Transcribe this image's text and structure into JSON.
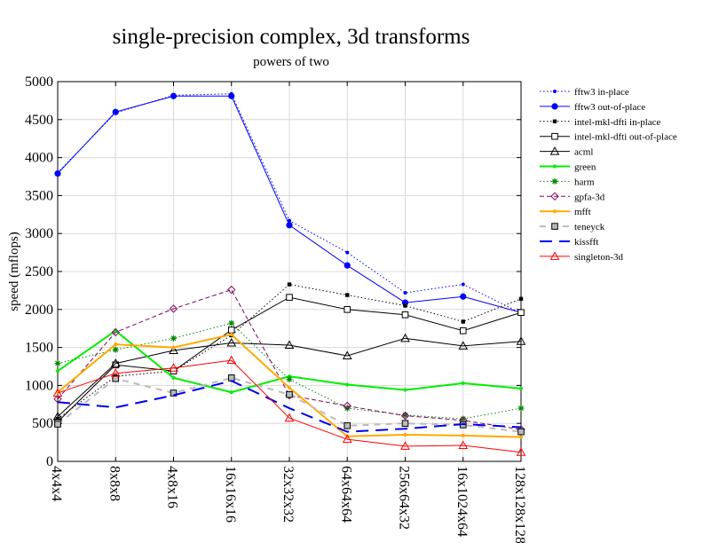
{
  "chart_data": {
    "type": "line",
    "title": "single-precision complex, 3d transforms",
    "subtitle": "powers of two",
    "xlabel": "",
    "ylabel": "speed (mflops)",
    "ylim": [
      0,
      5000
    ],
    "yticks": [
      0,
      500,
      1000,
      1500,
      2000,
      2500,
      3000,
      3500,
      4000,
      4500,
      5000
    ],
    "grid": true,
    "legend_position": "right",
    "categories": [
      "4x4x4",
      "8x8x8",
      "4x8x16",
      "16x16x16",
      "32x32x32",
      "64x64x64",
      "256x64x32",
      "16x1024x64",
      "128x128x128"
    ],
    "series": [
      {
        "name": "fftw3 in-place",
        "color": "#0000ff",
        "dash": "dot",
        "marker": "dot-small",
        "values": [
          3800,
          4590,
          4820,
          4840,
          3170,
          2750,
          2220,
          2330,
          1950
        ]
      },
      {
        "name": "fftw3 out-of-place",
        "color": "#0000ff",
        "dash": "solid",
        "marker": "dot-large",
        "values": [
          3790,
          4600,
          4810,
          4810,
          3110,
          2580,
          2090,
          2170,
          1960
        ]
      },
      {
        "name": "intel-mkl-dfti in-place",
        "color": "#000000",
        "dash": "dot",
        "marker": "square-filled",
        "values": [
          560,
          1120,
          1190,
          1660,
          2330,
          2190,
          2050,
          1840,
          2140
        ]
      },
      {
        "name": "intel-mkl-dfti out-of-place",
        "color": "#000000",
        "dash": "solid",
        "marker": "square-open",
        "values": [
          520,
          1270,
          1190,
          1730,
          2160,
          2000,
          1930,
          1720,
          1960
        ]
      },
      {
        "name": "acml",
        "color": "#000000",
        "dash": "solid",
        "marker": "triangle-open",
        "values": [
          590,
          1290,
          1460,
          1560,
          1530,
          1390,
          1620,
          1520,
          1580
        ]
      },
      {
        "name": "green",
        "color": "#00ee00",
        "dash": "solid",
        "marker": "dot-small",
        "values": [
          1190,
          1720,
          1100,
          910,
          1120,
          1010,
          940,
          1030,
          960
        ]
      },
      {
        "name": "harm",
        "color": "#008800",
        "dash": "dot",
        "marker": "star",
        "values": [
          1290,
          1470,
          1620,
          1820,
          1080,
          700,
          610,
          560,
          700
        ]
      },
      {
        "name": "gpfa-3d",
        "color": "#800060",
        "dash": "dash",
        "marker": "diamond-open",
        "values": [
          820,
          1700,
          2010,
          2260,
          870,
          730,
          600,
          540,
          420
        ]
      },
      {
        "name": "mfft",
        "color": "#ffaa00",
        "dash": "solid",
        "marker": "dot-small",
        "values": [
          910,
          1540,
          1500,
          1670,
          970,
          330,
          350,
          340,
          320
        ]
      },
      {
        "name": "teneyck",
        "color": "#bbbbbb",
        "dash": "dash-wide",
        "marker": "square-open-gray",
        "values": [
          490,
          1090,
          900,
          1100,
          880,
          470,
          500,
          480,
          390
        ]
      },
      {
        "name": "kissfft",
        "color": "#0000ee",
        "dash": "dash-long",
        "marker": "none",
        "values": [
          780,
          710,
          870,
          1060,
          700,
          390,
          430,
          490,
          450
        ]
      },
      {
        "name": "singleton-3d",
        "color": "#ff0000",
        "dash": "solid",
        "marker": "triangle-open",
        "values": [
          900,
          1160,
          1230,
          1330,
          570,
          290,
          200,
          210,
          120
        ]
      }
    ]
  }
}
